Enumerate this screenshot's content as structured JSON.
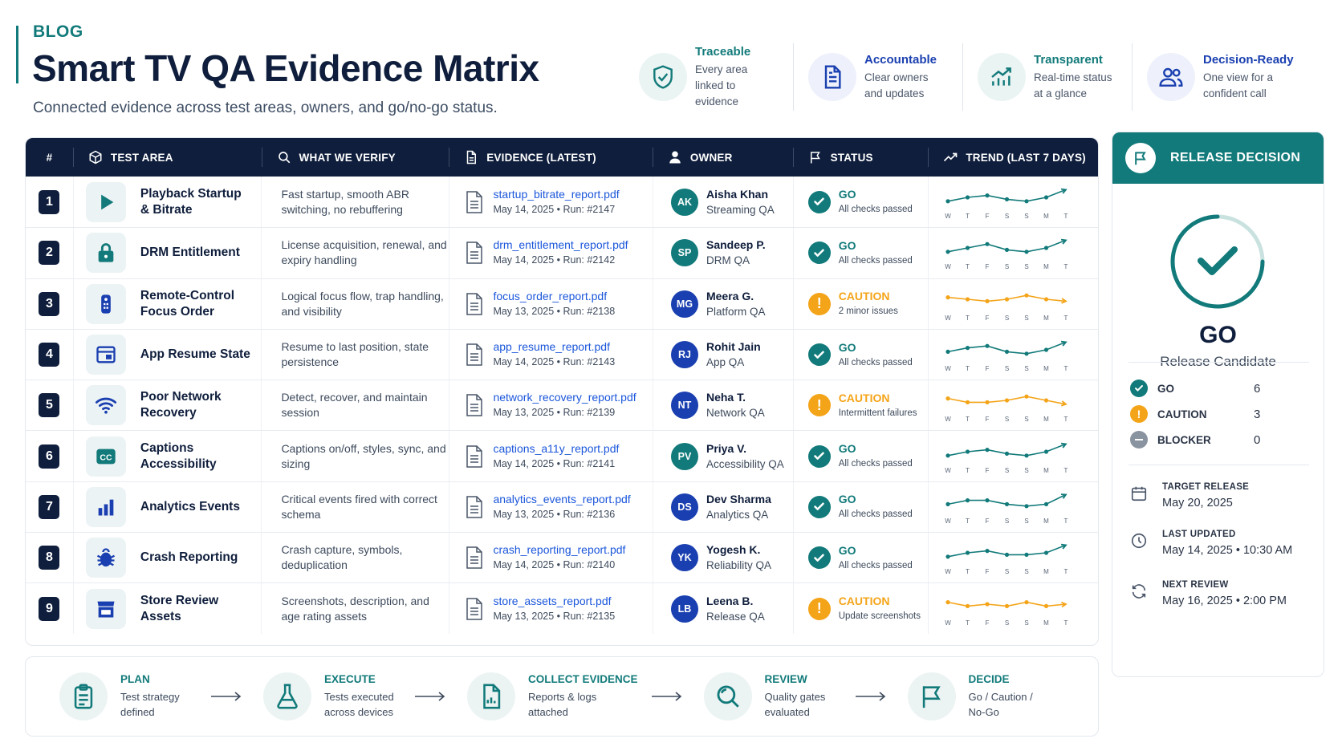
{
  "header": {
    "kicker": "BLOG",
    "title": "Smart TV QA Evidence Matrix",
    "subtitle": "Connected evidence across test areas, owners, and go/no-go status."
  },
  "pillars": [
    {
      "title": "Traceable",
      "text": "Every area linked to evidence",
      "icon": "shield-check-icon",
      "color": "#127a7a",
      "bg": "#eaf4f3"
    },
    {
      "title": "Accountable",
      "text": "Clear owners and updates",
      "icon": "document-icon",
      "color": "#1a3fb0",
      "bg": "#eef1fb"
    },
    {
      "title": "Transparent",
      "text": "Real-time status at a glance",
      "icon": "chart-up-icon",
      "color": "#127a7a",
      "bg": "#eaf4f3"
    },
    {
      "title": "Decision-Ready",
      "text": "One view for a confident call",
      "icon": "team-icon",
      "color": "#1a3fb0",
      "bg": "#eef1fb"
    }
  ],
  "table": {
    "headers": {
      "num": "#",
      "area": "TEST AREA",
      "verify": "WHAT WE VERIFY",
      "evidence": "EVIDENCE (LATEST)",
      "owner": "OWNER",
      "status": "STATUS",
      "trend": "TREND (LAST 7 DAYS)"
    },
    "trend_days": [
      "W",
      "T",
      "F",
      "S",
      "S",
      "M",
      "T"
    ],
    "rows": [
      {
        "num": "1",
        "area": "Playback Startup & Bitrate",
        "icon": "play-icon",
        "icon_color": "#127a7a",
        "verify": "Fast startup, smooth ABR switching, no rebuffering",
        "file": "startup_bitrate_report.pdf",
        "meta": "May 14, 2025  •  Run: #2147",
        "initials": "AK",
        "owner": "Aisha Khan",
        "team": "Streaming QA",
        "avatar_color": "#127a7a",
        "status": "GO",
        "note": "All checks passed",
        "trend": [
          3,
          5,
          6,
          4,
          3,
          5,
          9
        ]
      },
      {
        "num": "2",
        "area": "DRM Entitlement",
        "icon": "lock-icon",
        "icon_color": "#127a7a",
        "verify": "License acquisition, renewal, and expiry handling",
        "file": "drm_entitlement_report.pdf",
        "meta": "May 14, 2025  •  Run: #2142",
        "initials": "SP",
        "owner": "Sandeep P.",
        "team": "DRM QA",
        "avatar_color": "#127a7a",
        "status": "GO",
        "note": "All checks passed",
        "trend": [
          3,
          5,
          7,
          4,
          3,
          5,
          9
        ]
      },
      {
        "num": "3",
        "area": "Remote-Control Focus Order",
        "icon": "remote-icon",
        "icon_color": "#1a3fb0",
        "verify": "Logical focus flow, trap handling, and visibility",
        "file": "focus_order_report.pdf",
        "meta": "May 13, 2025  •  Run: #2138",
        "initials": "MG",
        "owner": "Meera G.",
        "team": "Platform QA",
        "avatar_color": "#1a3fb0",
        "status": "CAUTION",
        "note": "2 minor issues",
        "trend": [
          6,
          5,
          4,
          5,
          7,
          5,
          4
        ]
      },
      {
        "num": "4",
        "area": "App Resume State",
        "icon": "window-icon",
        "icon_color": "#1a3fb0",
        "verify": "Resume to last position, state persistence",
        "file": "app_resume_report.pdf",
        "meta": "May 14, 2025  •  Run: #2143",
        "initials": "RJ",
        "owner": "Rohit Jain",
        "team": "App QA",
        "avatar_color": "#1a3fb0",
        "status": "GO",
        "note": "All checks passed",
        "trend": [
          4,
          6,
          7,
          4,
          3,
          5,
          9
        ]
      },
      {
        "num": "5",
        "area": "Poor Network Recovery",
        "icon": "wifi-icon",
        "icon_color": "#1a3fb0",
        "verify": "Detect, recover, and maintain session",
        "file": "network_recovery_report.pdf",
        "meta": "May 13, 2025  •  Run: #2139",
        "initials": "NT",
        "owner": "Neha T.",
        "team": "Network QA",
        "avatar_color": "#1a3fb0",
        "status": "CAUTION",
        "note": "Intermittent failures",
        "trend": [
          6,
          4,
          4,
          5,
          7,
          5,
          3
        ]
      },
      {
        "num": "6",
        "area": "Captions Accessibility",
        "icon": "cc-icon",
        "icon_color": "#127a7a",
        "verify": "Captions on/off, styles, sync, and sizing",
        "file": "captions_a11y_report.pdf",
        "meta": "May 14, 2025  •  Run: #2141",
        "initials": "PV",
        "owner": "Priya V.",
        "team": "Accessibility QA",
        "avatar_color": "#127a7a",
        "status": "GO",
        "note": "All checks passed",
        "trend": [
          3,
          5,
          6,
          4,
          3,
          5,
          9
        ]
      },
      {
        "num": "7",
        "area": "Analytics Events",
        "icon": "bar-chart-icon",
        "icon_color": "#1a3fb0",
        "verify": "Critical events fired with correct schema",
        "file": "analytics_events_report.pdf",
        "meta": "May 13, 2025  •  Run: #2136",
        "initials": "DS",
        "owner": "Dev Sharma",
        "team": "Analytics QA",
        "avatar_color": "#1a3fb0",
        "status": "GO",
        "note": "All checks passed",
        "trend": [
          4,
          6,
          6,
          4,
          3,
          4,
          9
        ]
      },
      {
        "num": "8",
        "area": "Crash Reporting",
        "icon": "bug-icon",
        "icon_color": "#1a3fb0",
        "verify": "Crash capture, symbols, deduplication",
        "file": "crash_reporting_report.pdf",
        "meta": "May 14, 2025  •  Run: #2140",
        "initials": "YK",
        "owner": "Yogesh K.",
        "team": "Reliability QA",
        "avatar_color": "#1a3fb0",
        "status": "GO",
        "note": "All checks passed",
        "trend": [
          3,
          5,
          6,
          4,
          4,
          5,
          9
        ]
      },
      {
        "num": "9",
        "area": "Store Review Assets",
        "icon": "store-icon",
        "icon_color": "#1a3fb0",
        "verify": "Screenshots, description, and age rating assets",
        "file": "store_assets_report.pdf",
        "meta": "May 13, 2025  •  Run: #2135",
        "initials": "LB",
        "owner": "Leena B.",
        "team": "Release QA",
        "avatar_color": "#1a3fb0",
        "status": "CAUTION",
        "note": "Update screenshots",
        "trend": [
          6,
          4,
          5,
          4,
          6,
          4,
          5
        ]
      }
    ]
  },
  "process": [
    {
      "title": "PLAN",
      "text": "Test strategy defined",
      "icon": "clipboard-icon"
    },
    {
      "title": "EXECUTE",
      "text": "Tests executed across devices",
      "icon": "flask-icon"
    },
    {
      "title": "COLLECT EVIDENCE",
      "text": "Reports & logs attached",
      "icon": "file-chart-icon"
    },
    {
      "title": "REVIEW",
      "text": "Quality gates evaluated",
      "icon": "magnifier-icon"
    },
    {
      "title": "DECIDE",
      "text": "Go / Caution / No-Go",
      "icon": "flag-icon"
    }
  ],
  "panel": {
    "title": "RELEASE DECISION",
    "decision": "GO",
    "decision_sub": "Release Candidate",
    "counts": [
      {
        "label": "GO",
        "value": "6",
        "color": "#127a7a"
      },
      {
        "label": "CAUTION",
        "value": "3",
        "color": "#f4a418"
      },
      {
        "label": "BLOCKER",
        "value": "0",
        "color": "#8a93a0"
      }
    ],
    "target_label": "TARGET RELEASE",
    "target_value": "May 20, 2025",
    "updated_label": "LAST UPDATED",
    "updated_value": "May 14, 2025  •  10:30 AM",
    "review_label": "NEXT REVIEW",
    "review_value": "May 16, 2025  •  2:00 PM"
  },
  "colors": {
    "navy": "#0f1e3c",
    "teal": "#127a7a",
    "blue": "#1a3fb0",
    "caution": "#f4a418",
    "link": "#1a56db"
  }
}
